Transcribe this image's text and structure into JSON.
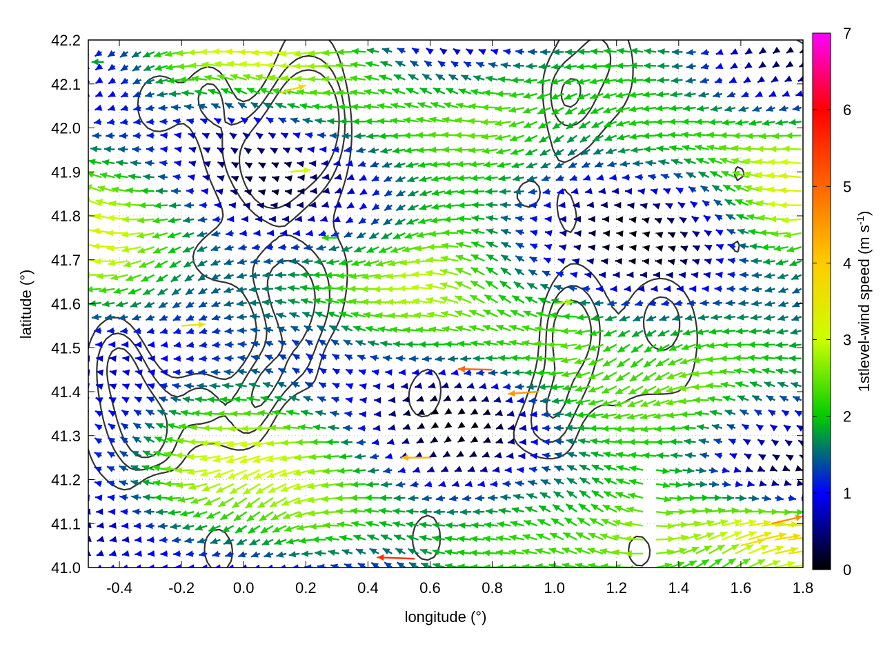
{
  "chart_data": {
    "type": "vector-field",
    "xlabel": "longitude (°)",
    "ylabel": "latitude (°)",
    "xlim": [
      -0.5,
      1.8
    ],
    "ylim": [
      41.0,
      42.2
    ],
    "x_ticks": [
      "-0.4",
      "-0.2",
      "0.0",
      "0.2",
      "0.4",
      "0.6",
      "0.8",
      "1.0",
      "1.2",
      "1.4",
      "1.6",
      "1.8"
    ],
    "x_tick_values": [
      -0.4,
      -0.2,
      0.0,
      0.2,
      0.4,
      0.6,
      0.8,
      1.0,
      1.2,
      1.4,
      1.6,
      1.8
    ],
    "y_ticks": [
      "41.0",
      "41.1",
      "41.2",
      "41.3",
      "41.4",
      "41.5",
      "41.6",
      "41.7",
      "41.8",
      "41.9",
      "42.0",
      "42.1",
      "42.2"
    ],
    "y_tick_values": [
      41.0,
      41.1,
      41.2,
      41.3,
      41.4,
      41.5,
      41.6,
      41.7,
      41.8,
      41.9,
      42.0,
      42.1,
      42.2
    ],
    "grid": true,
    "colorbar": {
      "label_main": "1stlevel-wind speed (m s",
      "label_sup": "-1",
      "label_close": ")",
      "range": [
        0,
        7
      ],
      "ticks": [
        "0",
        "1",
        "2",
        "3",
        "4",
        "5",
        "6",
        "7"
      ],
      "tick_values": [
        0,
        1,
        2,
        3,
        4,
        5,
        6,
        7
      ],
      "colors": [
        "#000000",
        "#0000ff",
        "#00cc00",
        "#ccff00",
        "#ffcc00",
        "#ff6600",
        "#ff0000",
        "#ff00ff"
      ]
    },
    "vectors": [
      {
        "lon": -0.45,
        "lat": 42.15,
        "u": -1.8,
        "v": 0.0
      },
      {
        "lon": 0.12,
        "lat": 42.08,
        "u": 3.6,
        "v": 1.0
      },
      {
        "lon": 0.15,
        "lat": 41.9,
        "u": 3.0,
        "v": 0.3
      },
      {
        "lon": -0.2,
        "lat": 41.55,
        "u": 3.5,
        "v": 0.2
      },
      {
        "lon": 0.8,
        "lat": 41.45,
        "u": -5.0,
        "v": 0.1
      },
      {
        "lon": 0.95,
        "lat": 41.4,
        "u": -4.5,
        "v": -0.3
      },
      {
        "lon": 0.6,
        "lat": 41.25,
        "u": -4.2,
        "v": 0.0
      },
      {
        "lon": 0.55,
        "lat": 41.02,
        "u": -5.5,
        "v": 0.2
      },
      {
        "lon": 1.7,
        "lat": 41.1,
        "u": 4.5,
        "v": 1.0
      },
      {
        "lon": 1.6,
        "lat": 41.05,
        "u": 3.5,
        "v": 0.8
      },
      {
        "lon": 1.0,
        "lat": 41.6,
        "u": 2.8,
        "v": 0.3
      },
      {
        "lon": 0.3,
        "lat": 41.75,
        "u": -2.2,
        "v": 0.0
      }
    ],
    "contour_levels": [
      0.25,
      0.5,
      0.75
    ]
  }
}
